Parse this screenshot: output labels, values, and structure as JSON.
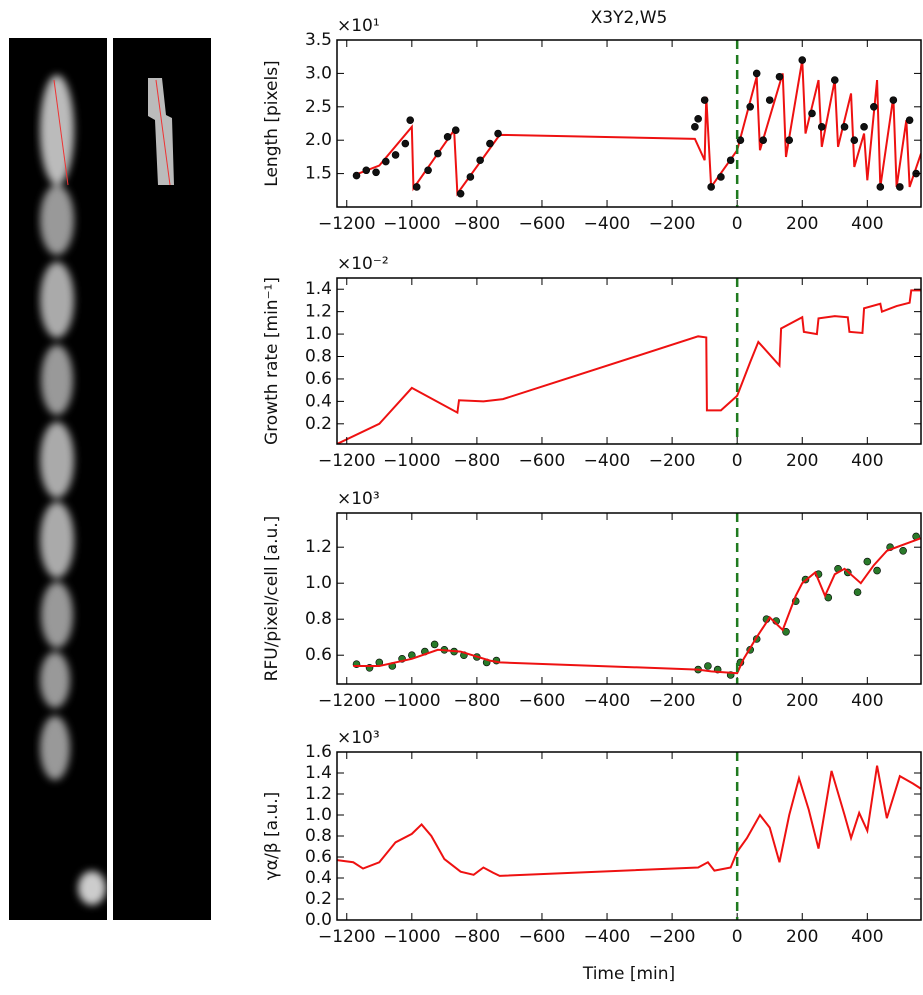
{
  "chart_data": [
    {
      "type": "line",
      "title": "X3Y2,W5",
      "ylabel": "Length [pixels]",
      "y_offset_label": "×10¹",
      "xlim": [
        -1230,
        565
      ],
      "ylim": [
        1.0,
        3.5
      ],
      "xticks": [
        {
          "value": -1200,
          "label": "−1200"
        },
        {
          "value": -1000,
          "label": "−1000"
        },
        {
          "value": -800,
          "label": "−800"
        },
        {
          "value": -600,
          "label": "−600"
        },
        {
          "value": -400,
          "label": "−400"
        },
        {
          "value": -200,
          "label": "−200"
        },
        0,
        200,
        400
      ],
      "yticks": [
        1.5,
        {
          "value": 2,
          "label": "2.0"
        },
        2.5,
        {
          "value": 3,
          "label": "3.0"
        },
        3.5
      ],
      "vline": {
        "x": 0,
        "color": "#1f7a1f"
      },
      "series": [
        {
          "type": "line",
          "color": "#ee1111",
          "x": [
            -1180,
            -1100,
            -1000,
            -995,
            -870,
            -860,
            -730,
            -130,
            -100,
            -95,
            -80,
            0,
            60,
            70,
            140,
            150,
            200,
            210,
            250,
            260,
            300,
            310,
            350,
            360,
            390,
            400,
            430,
            440,
            480,
            490,
            520,
            530,
            565
          ],
          "values": [
            1.47,
            1.62,
            2.2,
            1.28,
            2.15,
            1.2,
            2.08,
            2.02,
            1.7,
            2.65,
            1.3,
            1.85,
            2.95,
            1.85,
            3.0,
            1.75,
            3.2,
            2.1,
            2.9,
            1.9,
            2.9,
            1.9,
            2.7,
            1.6,
            2.1,
            1.4,
            2.9,
            1.3,
            2.65,
            1.3,
            2.3,
            1.3,
            1.8
          ]
        },
        {
          "type": "scatter",
          "color": "#111111",
          "x": [
            -1170,
            -1140,
            -1110,
            -1080,
            -1050,
            -1020,
            -1005,
            -985,
            -950,
            -920,
            -890,
            -865,
            -850,
            -820,
            -790,
            -760,
            -735,
            -130,
            -120,
            -100,
            -80,
            -50,
            -20,
            10,
            40,
            60,
            80,
            100,
            130,
            160,
            200,
            230,
            260,
            300,
            330,
            360,
            390,
            420,
            440,
            480,
            500,
            530,
            550
          ],
          "values": [
            1.47,
            1.55,
            1.52,
            1.68,
            1.78,
            1.95,
            2.3,
            1.3,
            1.55,
            1.8,
            2.05,
            2.15,
            1.2,
            1.45,
            1.7,
            1.95,
            2.1,
            2.2,
            2.32,
            2.6,
            1.3,
            1.45,
            1.7,
            2.0,
            2.5,
            3.0,
            2.0,
            2.6,
            2.95,
            2.0,
            3.2,
            2.4,
            2.2,
            2.9,
            2.2,
            2.0,
            2.2,
            2.5,
            1.3,
            2.6,
            1.3,
            2.3,
            1.5
          ]
        }
      ]
    },
    {
      "type": "line",
      "ylabel": "Growth rate [min⁻¹]",
      "y_offset_label": "×10⁻²",
      "xlim": [
        -1230,
        565
      ],
      "ylim": [
        0.02,
        1.5
      ],
      "xticks": [
        {
          "value": -1200,
          "label": "−1200"
        },
        {
          "value": -1000,
          "label": "−1000"
        },
        {
          "value": -800,
          "label": "−800"
        },
        {
          "value": -600,
          "label": "−600"
        },
        {
          "value": -400,
          "label": "−400"
        },
        {
          "value": -200,
          "label": "−200"
        },
        0,
        200,
        400
      ],
      "yticks": [
        0.2,
        0.4,
        0.6,
        0.8,
        {
          "value": 1,
          "label": "1.0"
        },
        1.2,
        1.4
      ],
      "vline": {
        "x": 0,
        "color": "#1f7a1f"
      },
      "series": [
        {
          "type": "line",
          "color": "#ee1111",
          "x": [
            -1230,
            -1100,
            -1000,
            -860,
            -855,
            -780,
            -720,
            -120,
            -95,
            -93,
            -50,
            0,
            40,
            65,
            130,
            135,
            200,
            205,
            245,
            250,
            300,
            340,
            345,
            385,
            390,
            440,
            445,
            490,
            530,
            535,
            565
          ],
          "values": [
            0.02,
            0.2,
            0.52,
            0.3,
            0.41,
            0.4,
            0.42,
            0.98,
            0.97,
            0.32,
            0.32,
            0.45,
            0.75,
            0.93,
            0.72,
            1.05,
            1.15,
            1.02,
            1.0,
            1.14,
            1.16,
            1.15,
            1.02,
            1.01,
            1.23,
            1.27,
            1.2,
            1.25,
            1.28,
            1.39,
            1.39
          ]
        }
      ]
    },
    {
      "type": "line",
      "ylabel": "RFU/pixel/cell [a.u.]",
      "y_offset_label": "×10³",
      "xlim": [
        -1230,
        565
      ],
      "ylim": [
        0.44,
        1.39
      ],
      "xticks": [
        {
          "value": -1200,
          "label": "−1200"
        },
        {
          "value": -1000,
          "label": "−1000"
        },
        {
          "value": -800,
          "label": "−800"
        },
        {
          "value": -600,
          "label": "−600"
        },
        {
          "value": -400,
          "label": "−400"
        },
        {
          "value": -200,
          "label": "−200"
        },
        0,
        200,
        400
      ],
      "yticks": [
        0.6,
        0.8,
        {
          "value": 1,
          "label": "1.0"
        },
        1.2
      ],
      "vline": {
        "x": 0,
        "color": "#1f7a1f"
      },
      "series": [
        {
          "type": "scatter",
          "color": "#2a7a2a",
          "x": [
            -1170,
            -1130,
            -1100,
            -1060,
            -1030,
            -1000,
            -960,
            -930,
            -900,
            -870,
            -840,
            -800,
            -770,
            -740,
            -120,
            -90,
            -60,
            -20,
            10,
            40,
            60,
            90,
            120,
            150,
            180,
            210,
            250,
            280,
            310,
            340,
            370,
            400,
            430,
            470,
            510,
            550
          ],
          "values": [
            0.55,
            0.53,
            0.56,
            0.54,
            0.58,
            0.6,
            0.62,
            0.66,
            0.63,
            0.62,
            0.6,
            0.59,
            0.56,
            0.57,
            0.52,
            0.54,
            0.52,
            0.49,
            0.56,
            0.63,
            0.69,
            0.8,
            0.79,
            0.73,
            0.9,
            1.02,
            1.05,
            0.92,
            1.08,
            1.06,
            0.95,
            1.12,
            1.07,
            1.2,
            1.18,
            1.26
          ]
        },
        {
          "type": "line",
          "color": "#ee1111",
          "x": [
            -1180,
            -1100,
            -1000,
            -920,
            -850,
            -760,
            -730,
            -120,
            -80,
            0,
            20,
            60,
            100,
            140,
            180,
            200,
            240,
            270,
            300,
            330,
            380,
            420,
            460,
            520,
            565
          ],
          "values": [
            0.54,
            0.54,
            0.58,
            0.63,
            0.62,
            0.57,
            0.56,
            0.52,
            0.51,
            0.5,
            0.58,
            0.7,
            0.81,
            0.74,
            0.93,
            1.0,
            1.06,
            0.93,
            1.05,
            1.08,
            1.0,
            1.1,
            1.18,
            1.22,
            1.25
          ]
        }
      ]
    },
    {
      "type": "line",
      "ylabel": "γα/β [a.u.]",
      "xlabel": "Time [min]",
      "y_offset_label": "×10³",
      "xlim": [
        -1230,
        565
      ],
      "ylim": [
        0,
        1.6
      ],
      "xticks": [
        {
          "value": -1200,
          "label": "−1200"
        },
        {
          "value": -1000,
          "label": "−1000"
        },
        {
          "value": -800,
          "label": "−800"
        },
        {
          "value": -600,
          "label": "−600"
        },
        {
          "value": -400,
          "label": "−400"
        },
        {
          "value": -200,
          "label": "−200"
        },
        0,
        200,
        400
      ],
      "yticks": [
        {
          "value": 0,
          "label": "0.0"
        },
        0.2,
        0.4,
        0.6,
        0.8,
        {
          "value": 1,
          "label": "1.0"
        },
        1.2,
        1.4,
        1.6
      ],
      "vline": {
        "x": 0,
        "color": "#1f7a1f"
      },
      "series": [
        {
          "type": "line",
          "color": "#ee1111",
          "x": [
            -1230,
            -1180,
            -1150,
            -1100,
            -1050,
            -1000,
            -970,
            -940,
            -900,
            -850,
            -810,
            -780,
            -750,
            -730,
            -120,
            -90,
            -70,
            -20,
            0,
            30,
            70,
            100,
            130,
            160,
            190,
            220,
            250,
            290,
            330,
            350,
            375,
            400,
            430,
            460,
            500,
            540,
            565
          ],
          "values": [
            0.57,
            0.55,
            0.49,
            0.55,
            0.74,
            0.82,
            0.91,
            0.8,
            0.58,
            0.46,
            0.43,
            0.5,
            0.45,
            0.42,
            0.5,
            0.55,
            0.47,
            0.5,
            0.65,
            0.78,
            1.0,
            0.88,
            0.55,
            1.0,
            1.35,
            1.05,
            0.68,
            1.42,
            1.0,
            0.78,
            1.02,
            0.85,
            1.47,
            0.97,
            1.37,
            1.3,
            1.25
          ]
        }
      ]
    }
  ]
}
